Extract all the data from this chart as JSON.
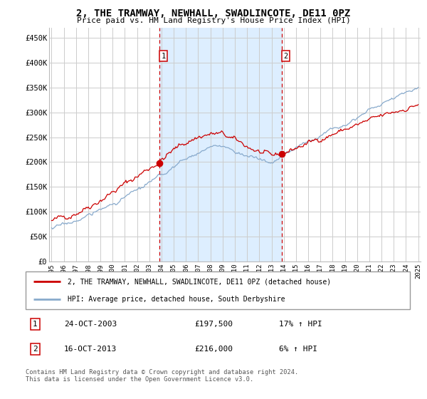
{
  "title": "2, THE TRAMWAY, NEWHALL, SWADLINCOTE, DE11 0PZ",
  "subtitle": "Price paid vs. HM Land Registry's House Price Index (HPI)",
  "legend_line1": "2, THE TRAMWAY, NEWHALL, SWADLINCOTE, DE11 0PZ (detached house)",
  "legend_line2": "HPI: Average price, detached house, South Derbyshire",
  "event1_date": "24-OCT-2003",
  "event1_price": "£197,500",
  "event1_hpi": "17% ↑ HPI",
  "event2_date": "16-OCT-2013",
  "event2_price": "£216,000",
  "event2_hpi": "6% ↑ HPI",
  "footer": "Contains HM Land Registry data © Crown copyright and database right 2024.\nThis data is licensed under the Open Government Licence v3.0.",
  "ylim": [
    0,
    470000
  ],
  "yticks": [
    0,
    50000,
    100000,
    150000,
    200000,
    250000,
    300000,
    350000,
    400000,
    450000
  ],
  "ytick_labels": [
    "£0",
    "£50K",
    "£100K",
    "£150K",
    "£200K",
    "£250K",
    "£300K",
    "£350K",
    "£400K",
    "£450K"
  ],
  "x_start_year": 1995,
  "x_end_year": 2025,
  "event1_year": 2003.83,
  "event2_year": 2013.83,
  "event1_price_val": 197500,
  "event2_price_val": 216000,
  "bg_color": "#ddeeff",
  "red_color": "#cc0000",
  "blue_color": "#88aacc",
  "grid_color": "#cccccc",
  "title_fontsize": 10,
  "subtitle_fontsize": 8.5
}
